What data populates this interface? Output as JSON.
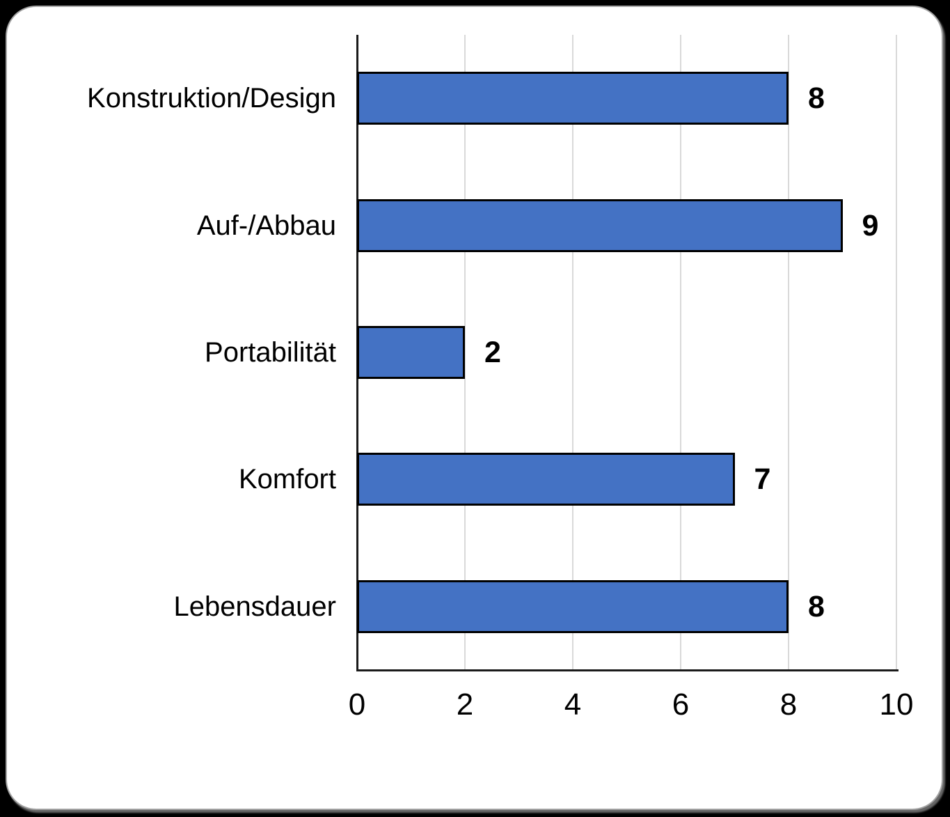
{
  "chart_data": {
    "type": "bar",
    "orientation": "horizontal",
    "title": "",
    "xlabel": "",
    "ylabel": "",
    "categories": [
      "Konstruktion/Design",
      "Auf-/Abbau",
      "Portabilität",
      "Komfort",
      "Lebensdauer"
    ],
    "values": [
      8,
      9,
      2,
      7,
      8
    ],
    "data_labels": [
      "8",
      "9",
      "2",
      "7",
      "8"
    ],
    "xlim": [
      0,
      10
    ],
    "xticks": [
      0,
      2,
      4,
      6,
      8,
      10
    ],
    "grid": "vertical-gridlines-on",
    "legend": "none",
    "colors": {
      "bar_fill": "#4472C4",
      "bar_border": "#000000",
      "gridline": "#D9D9D9",
      "axis": "#1A1A1A",
      "text": "#000000",
      "card_background": "#FFFFFF",
      "page_background": "#000000"
    }
  }
}
